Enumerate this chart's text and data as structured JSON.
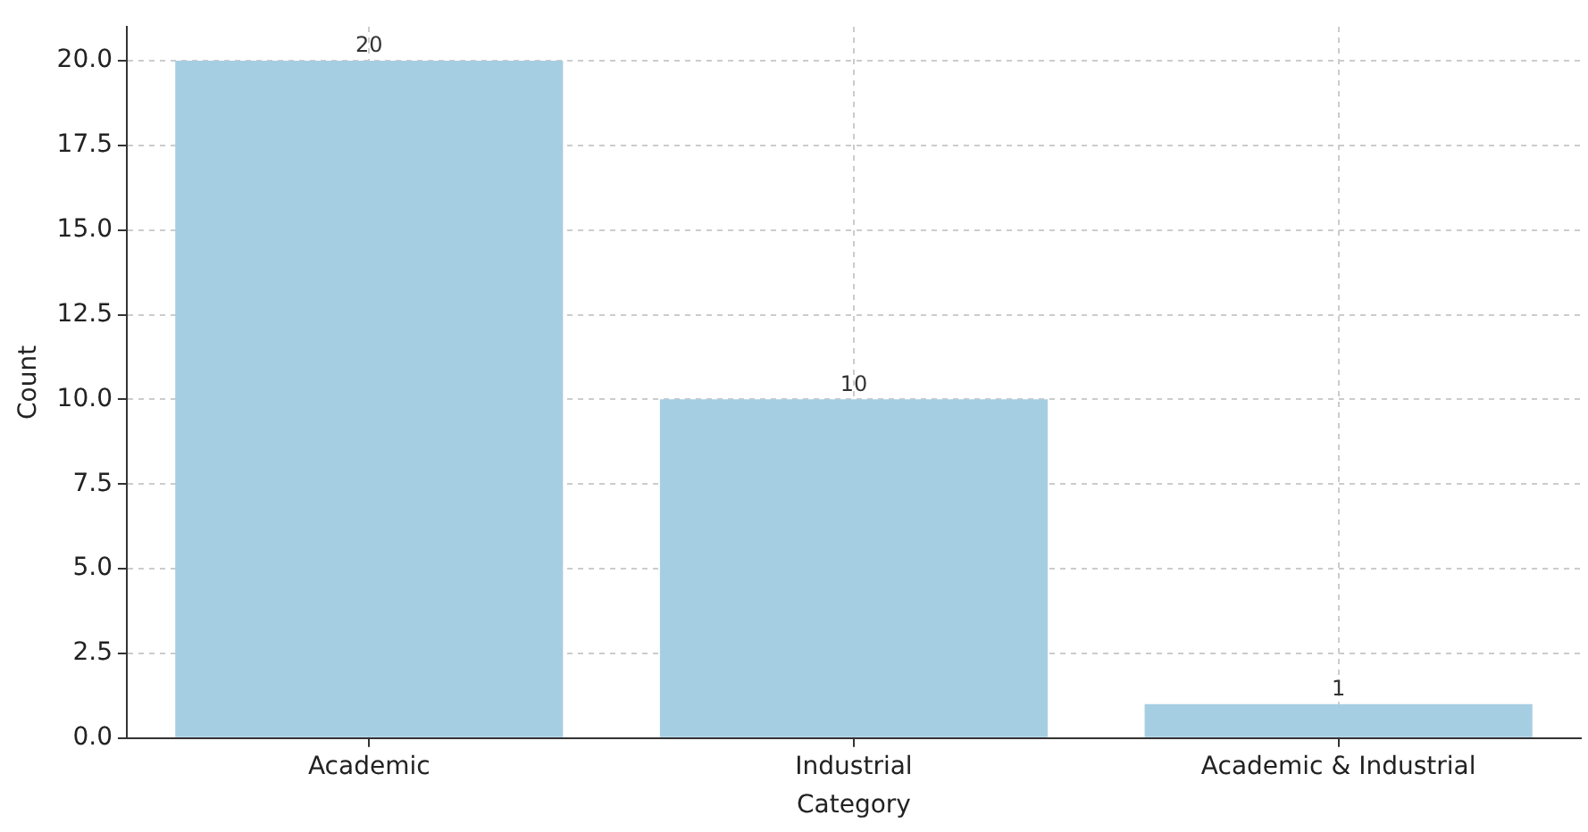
{
  "chart_data": {
    "type": "bar",
    "xlabel": "Category",
    "ylabel": "Count",
    "categories": [
      "Academic",
      "Industrial",
      "Academic & Industrial"
    ],
    "values": [
      20,
      10,
      1
    ],
    "color": "#a6cee3",
    "ylim": [
      0,
      21
    ],
    "yticks": [
      {
        "value": 0,
        "label": "0.0"
      },
      {
        "value": 2.5,
        "label": "2.5"
      },
      {
        "value": 5,
        "label": "5.0"
      },
      {
        "value": 7.5,
        "label": "7.5"
      },
      {
        "value": 10,
        "label": "10.0"
      },
      {
        "value": 12.5,
        "label": "12.5"
      },
      {
        "value": 15,
        "label": "15.0"
      },
      {
        "value": 17.5,
        "label": "17.5"
      },
      {
        "value": 20,
        "label": "20.0"
      }
    ],
    "grid": true,
    "data_labels": true
  }
}
